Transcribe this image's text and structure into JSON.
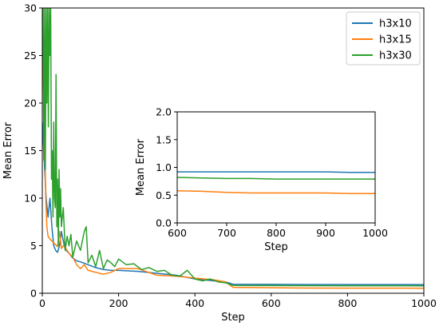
{
  "chart_data": [
    {
      "type": "line",
      "role": "main",
      "xlabel": "Step",
      "ylabel": "Mean Error",
      "xlim": [
        0,
        1000
      ],
      "ylim": [
        0,
        30
      ],
      "xticks": [
        0,
        200,
        400,
        600,
        800,
        1000
      ],
      "yticks": [
        0,
        5,
        10,
        15,
        20,
        25,
        30
      ],
      "grid": false,
      "legend": "top-right",
      "series": [
        {
          "name": "h3x10",
          "color": "#1f77b4",
          "x": [
            0,
            5,
            10,
            15,
            20,
            25,
            30,
            35,
            40,
            45,
            50,
            55,
            60,
            70,
            80,
            90,
            100,
            120,
            140,
            160,
            180,
            200,
            250,
            300,
            350,
            400,
            450,
            480,
            500,
            600,
            700,
            800,
            900,
            1000
          ],
          "y": [
            18,
            14,
            10,
            8,
            10,
            7,
            5,
            4.5,
            4.3,
            5,
            6.5,
            5.5,
            4.6,
            4.2,
            3.7,
            3.4,
            3.3,
            3.0,
            2.7,
            2.5,
            2.4,
            2.4,
            2.3,
            2.1,
            1.9,
            1.5,
            1.3,
            1.2,
            0.95,
            0.93,
            0.92,
            0.92,
            0.92,
            0.91
          ]
        },
        {
          "name": "h3x15",
          "color": "#ff7f0e",
          "x": [
            0,
            3,
            6,
            9,
            12,
            15,
            20,
            25,
            30,
            35,
            40,
            45,
            50,
            55,
            60,
            70,
            80,
            90,
            100,
            110,
            120,
            140,
            160,
            180,
            200,
            250,
            300,
            350,
            400,
            450,
            480,
            500,
            600,
            700,
            800,
            900,
            1000
          ],
          "y": [
            26,
            22,
            17,
            10,
            7,
            6,
            5.7,
            5.5,
            5.3,
            5.1,
            4.9,
            6.5,
            4.7,
            5,
            4.8,
            4.2,
            3.8,
            3,
            2.6,
            3,
            2.4,
            2.2,
            2,
            2.2,
            2.6,
            2.6,
            1.9,
            1.8,
            1.6,
            1.4,
            1.2,
            0.62,
            0.58,
            0.55,
            0.54,
            0.54,
            0.53
          ]
        },
        {
          "name": "h3x30",
          "color": "#2ca02c",
          "x": [
            0,
            2,
            4,
            6,
            8,
            10,
            12,
            14,
            16,
            18,
            20,
            22,
            24,
            26,
            28,
            30,
            32,
            34,
            36,
            38,
            40,
            42,
            44,
            46,
            48,
            50,
            55,
            60,
            65,
            70,
            75,
            80,
            90,
            100,
            110,
            115,
            120,
            130,
            140,
            150,
            160,
            170,
            180,
            190,
            200,
            220,
            240,
            260,
            280,
            300,
            320,
            340,
            360,
            380,
            400,
            420,
            440,
            460,
            480,
            500,
            600,
            700,
            800,
            900,
            1000
          ],
          "y": [
            30,
            30,
            14,
            30,
            13,
            30,
            20,
            30,
            17.5,
            30,
            25,
            30,
            12,
            15,
            8,
            18,
            10,
            9,
            23,
            7,
            12,
            5,
            13,
            8,
            11,
            7,
            9,
            4.5,
            6,
            5,
            6.2,
            3.8,
            5.5,
            4.5,
            6.5,
            7,
            3.2,
            4,
            2.8,
            4.5,
            2.6,
            3.5,
            3.2,
            2.8,
            3.6,
            3,
            3.1,
            2.5,
            2.7,
            2.3,
            2.4,
            1.9,
            1.8,
            2.4,
            1.5,
            1.3,
            1.5,
            1.2,
            1.1,
            0.82,
            0.81,
            0.8,
            0.79,
            0.79,
            0.78
          ]
        }
      ]
    },
    {
      "type": "line",
      "role": "inset",
      "xlabel": "Step",
      "ylabel": "Mean Error",
      "xlim": [
        600,
        1000
      ],
      "ylim": [
        0,
        2
      ],
      "xticks": [
        600,
        700,
        800,
        900,
        1000
      ],
      "yticks": [
        0.0,
        0.5,
        1.0,
        1.5,
        2.0
      ],
      "ytick_labels": [
        "0.0",
        "0.5",
        "1.0",
        "1.5",
        "2.0"
      ],
      "grid": false,
      "series": [
        {
          "name": "h3x10",
          "color": "#1f77b4",
          "x": [
            600,
            650,
            700,
            750,
            800,
            850,
            900,
            950,
            1000
          ],
          "y": [
            0.92,
            0.92,
            0.92,
            0.92,
            0.92,
            0.92,
            0.92,
            0.91,
            0.91
          ]
        },
        {
          "name": "h3x15",
          "color": "#ff7f0e",
          "x": [
            600,
            650,
            700,
            750,
            800,
            850,
            900,
            950,
            1000
          ],
          "y": [
            0.58,
            0.57,
            0.55,
            0.54,
            0.54,
            0.54,
            0.54,
            0.53,
            0.53
          ]
        },
        {
          "name": "h3x30",
          "color": "#2ca02c",
          "x": [
            600,
            650,
            700,
            750,
            800,
            850,
            900,
            950,
            1000
          ],
          "y": [
            0.82,
            0.81,
            0.8,
            0.8,
            0.79,
            0.79,
            0.79,
            0.79,
            0.79
          ]
        }
      ]
    }
  ]
}
